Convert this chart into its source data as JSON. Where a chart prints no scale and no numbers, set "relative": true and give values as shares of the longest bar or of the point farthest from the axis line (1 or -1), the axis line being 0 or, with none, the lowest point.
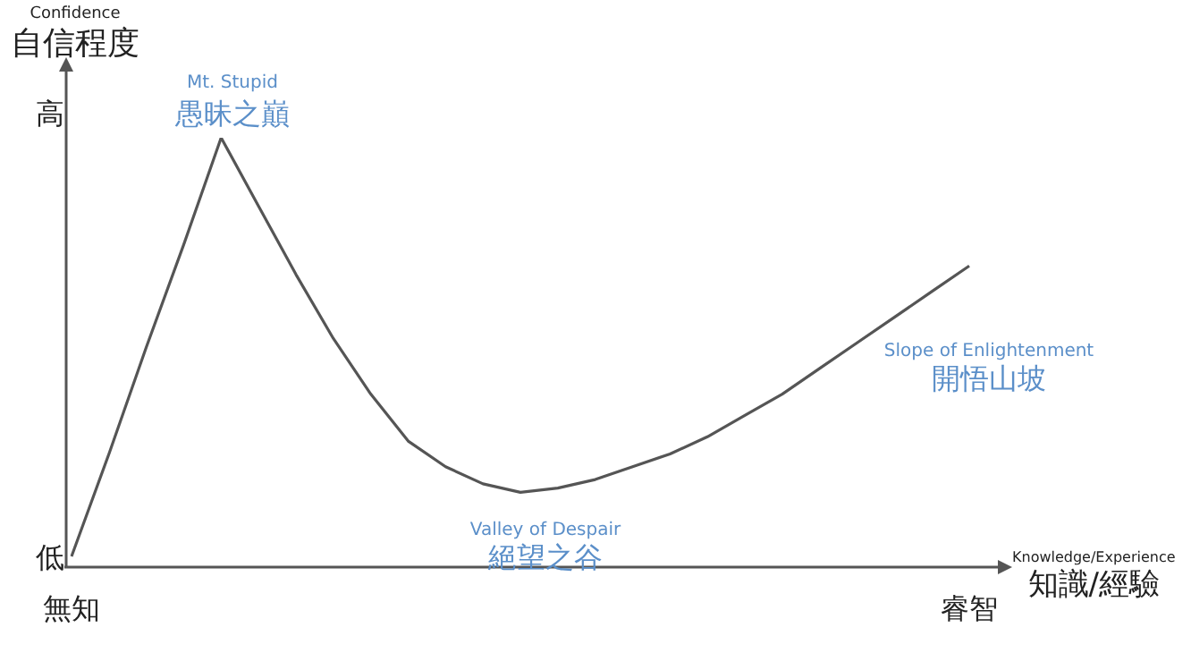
{
  "chart_data": {
    "type": "line",
    "relative": true,
    "marker": "none",
    "xlabel": "Knowledge/Experience\n知識/經驗",
    "ylabel": "Confidence\n自信程度",
    "categories": [
      "無知",
      null,
      null,
      null,
      null,
      null,
      null,
      null,
      null,
      null,
      null,
      null,
      null,
      null,
      null,
      null,
      null,
      null,
      null,
      null,
      null,
      null,
      null,
      null,
      "睿智"
    ],
    "series": [
      {
        "color": "#555555",
        "values": [
          0.02,
          0.26,
          0.51,
          0.75,
          1.0,
          0.84,
          0.68,
          0.53,
          0.4,
          0.29,
          0.23,
          0.19,
          0.17,
          0.18,
          0.2,
          0.23,
          0.26,
          0.3,
          0.35,
          0.4,
          0.46,
          0.52,
          0.58,
          0.64,
          0.7
        ]
      }
    ],
    "annotations": [
      "Mt. Stupid",
      "愚昧之巔",
      "Valley of Despair",
      "絕望之谷",
      "Slope of Enlightenment",
      "開悟山坡",
      "高",
      "低"
    ]
  }
}
